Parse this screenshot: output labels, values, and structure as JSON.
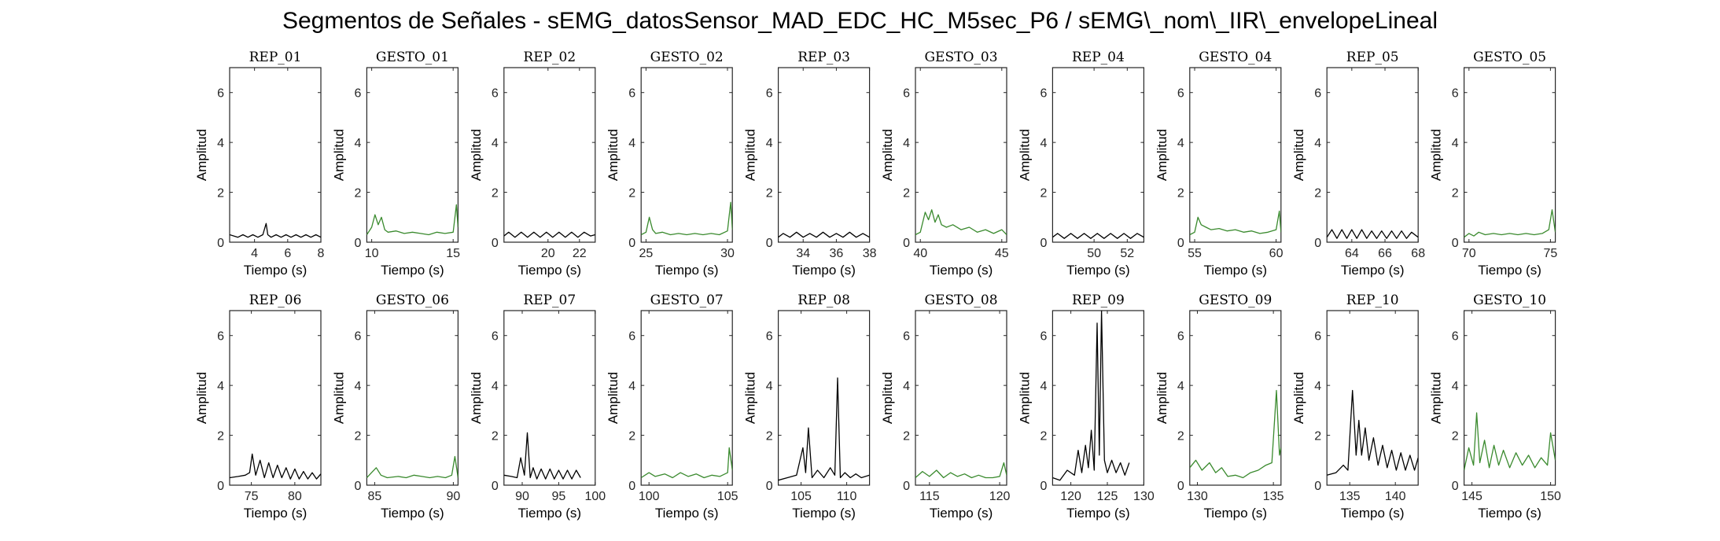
{
  "title": "Segmentos de Señales - sEMG_datosSensor_MAD_EDC_HC_M5sec_P6 / sEMG\\_nom\\_IIR\\_envelopeLineal",
  "colors": {
    "rep": "#000000",
    "gesto": "#3a8a2e",
    "axis": "#262626"
  },
  "chart_data": [
    {
      "type": "line",
      "title": "REP_01",
      "xlabel": "Tiempo (s)",
      "ylabel": "Amplitud",
      "xlim": [
        2.5,
        8
      ],
      "ylim": [
        0,
        7
      ],
      "xticks": [
        4,
        6,
        8
      ],
      "yticks": [
        0,
        2,
        4,
        6
      ],
      "color": "rep",
      "x": [
        2.5,
        3.0,
        3.3,
        3.6,
        3.9,
        4.2,
        4.5,
        4.7,
        4.8,
        5.0,
        5.3,
        5.6,
        5.9,
        6.2,
        6.5,
        6.8,
        7.1,
        7.4,
        7.7,
        8.0
      ],
      "y": [
        0.3,
        0.2,
        0.3,
        0.2,
        0.3,
        0.2,
        0.3,
        0.75,
        0.3,
        0.2,
        0.3,
        0.2,
        0.3,
        0.2,
        0.3,
        0.2,
        0.3,
        0.2,
        0.3,
        0.2
      ]
    },
    {
      "type": "line",
      "title": "GESTO_01",
      "xlabel": "Tiempo (s)",
      "ylabel": "Amplitud",
      "xlim": [
        9.7,
        15.3
      ],
      "ylim": [
        0,
        7
      ],
      "xticks": [
        10,
        15
      ],
      "yticks": [
        0,
        2,
        4,
        6
      ],
      "color": "gesto",
      "x": [
        9.7,
        10.0,
        10.2,
        10.4,
        10.6,
        10.8,
        11.0,
        11.5,
        12.0,
        12.5,
        13.0,
        13.5,
        14.0,
        14.5,
        15.0,
        15.2,
        15.3
      ],
      "y": [
        0.3,
        0.6,
        1.1,
        0.7,
        1.0,
        0.5,
        0.4,
        0.45,
        0.35,
        0.4,
        0.35,
        0.3,
        0.4,
        0.35,
        0.4,
        1.5,
        0.6
      ]
    },
    {
      "type": "line",
      "title": "REP_02",
      "xlabel": "Tiempo (s)",
      "ylabel": "Amplitud",
      "xlim": [
        17.2,
        23
      ],
      "ylim": [
        0,
        7
      ],
      "xticks": [
        20,
        22
      ],
      "yticks": [
        0,
        2,
        4,
        6
      ],
      "color": "rep",
      "x": [
        17.2,
        17.5,
        17.9,
        18.3,
        18.7,
        19.1,
        19.5,
        19.9,
        20.3,
        20.7,
        21.1,
        21.5,
        21.9,
        22.3,
        22.7,
        23.0
      ],
      "y": [
        0.25,
        0.4,
        0.2,
        0.4,
        0.2,
        0.4,
        0.2,
        0.4,
        0.2,
        0.4,
        0.2,
        0.4,
        0.2,
        0.4,
        0.25,
        0.3
      ]
    },
    {
      "type": "line",
      "title": "GESTO_02",
      "xlabel": "Tiempo (s)",
      "ylabel": "Amplitud",
      "xlim": [
        24.7,
        30.3
      ],
      "ylim": [
        0,
        7
      ],
      "xticks": [
        25,
        30
      ],
      "yticks": [
        0,
        2,
        4,
        6
      ],
      "color": "gesto",
      "x": [
        24.7,
        25.0,
        25.2,
        25.4,
        25.6,
        26.0,
        26.5,
        27.0,
        27.5,
        28.0,
        28.5,
        29.0,
        29.5,
        30.0,
        30.2,
        30.3
      ],
      "y": [
        0.3,
        0.4,
        1.0,
        0.5,
        0.35,
        0.4,
        0.3,
        0.35,
        0.3,
        0.35,
        0.3,
        0.35,
        0.3,
        0.45,
        1.6,
        0.5
      ]
    },
    {
      "type": "line",
      "title": "REP_03",
      "xlabel": "Tiempo (s)",
      "ylabel": "Amplitud",
      "xlim": [
        32.5,
        38
      ],
      "ylim": [
        0,
        7
      ],
      "xticks": [
        34,
        36,
        38
      ],
      "yticks": [
        0,
        2,
        4,
        6
      ],
      "color": "rep",
      "x": [
        32.5,
        32.8,
        33.2,
        33.6,
        34.0,
        34.4,
        34.8,
        35.2,
        35.6,
        36.0,
        36.4,
        36.8,
        37.2,
        37.6,
        38.0
      ],
      "y": [
        0.2,
        0.35,
        0.2,
        0.4,
        0.2,
        0.35,
        0.2,
        0.4,
        0.2,
        0.35,
        0.2,
        0.4,
        0.2,
        0.35,
        0.2
      ]
    },
    {
      "type": "line",
      "title": "GESTO_03",
      "xlabel": "Tiempo (s)",
      "ylabel": "Amplitud",
      "xlim": [
        39.7,
        45.3
      ],
      "ylim": [
        0,
        7
      ],
      "xticks": [
        40,
        45
      ],
      "yticks": [
        0,
        2,
        4,
        6
      ],
      "color": "gesto",
      "x": [
        39.7,
        40.0,
        40.3,
        40.5,
        40.7,
        40.9,
        41.1,
        41.3,
        41.6,
        42.0,
        42.5,
        43.0,
        43.5,
        44.0,
        44.5,
        45.0,
        45.3
      ],
      "y": [
        0.3,
        0.4,
        1.2,
        0.9,
        1.3,
        0.8,
        1.1,
        0.7,
        0.6,
        0.7,
        0.5,
        0.6,
        0.4,
        0.5,
        0.35,
        0.5,
        0.3
      ]
    },
    {
      "type": "line",
      "title": "REP_04",
      "xlabel": "Tiempo (s)",
      "ylabel": "Amplitud",
      "xlim": [
        47.5,
        53
      ],
      "ylim": [
        0,
        7
      ],
      "xticks": [
        50,
        52
      ],
      "yticks": [
        0,
        2,
        4,
        6
      ],
      "color": "rep",
      "x": [
        47.5,
        47.8,
        48.2,
        48.6,
        49.0,
        49.4,
        49.8,
        50.2,
        50.6,
        51.0,
        51.4,
        51.8,
        52.2,
        52.6,
        53.0
      ],
      "y": [
        0.2,
        0.35,
        0.15,
        0.35,
        0.15,
        0.35,
        0.15,
        0.35,
        0.15,
        0.35,
        0.15,
        0.35,
        0.15,
        0.35,
        0.2
      ]
    },
    {
      "type": "line",
      "title": "GESTO_04",
      "xlabel": "Tiempo (s)",
      "ylabel": "Amplitud",
      "xlim": [
        54.7,
        60.3
      ],
      "ylim": [
        0,
        7
      ],
      "xticks": [
        55,
        60
      ],
      "yticks": [
        0,
        2,
        4,
        6
      ],
      "color": "gesto",
      "x": [
        54.7,
        55.0,
        55.2,
        55.4,
        55.7,
        56.0,
        56.5,
        57.0,
        57.5,
        58.0,
        58.5,
        59.0,
        59.5,
        60.0,
        60.2,
        60.3
      ],
      "y": [
        0.3,
        0.4,
        1.0,
        0.7,
        0.6,
        0.5,
        0.55,
        0.45,
        0.5,
        0.4,
        0.45,
        0.35,
        0.4,
        0.5,
        1.25,
        0.4
      ]
    },
    {
      "type": "line",
      "title": "REP_05",
      "xlabel": "Tiempo (s)",
      "ylabel": "Amplitud",
      "xlim": [
        62.5,
        68
      ],
      "ylim": [
        0,
        7
      ],
      "xticks": [
        64,
        66,
        68
      ],
      "yticks": [
        0,
        2,
        4,
        6
      ],
      "color": "rep",
      "x": [
        62.5,
        62.8,
        63.1,
        63.4,
        63.7,
        64.0,
        64.3,
        64.6,
        64.9,
        65.2,
        65.5,
        65.8,
        66.1,
        66.4,
        66.7,
        67.0,
        67.3,
        67.6,
        68.0
      ],
      "y": [
        0.2,
        0.5,
        0.15,
        0.5,
        0.15,
        0.5,
        0.15,
        0.5,
        0.15,
        0.45,
        0.15,
        0.45,
        0.15,
        0.45,
        0.15,
        0.45,
        0.15,
        0.4,
        0.2
      ]
    },
    {
      "type": "line",
      "title": "GESTO_05",
      "xlabel": "Tiempo (s)",
      "ylabel": "Amplitud",
      "xlim": [
        69.7,
        75.3
      ],
      "ylim": [
        0,
        7
      ],
      "xticks": [
        70,
        75
      ],
      "yticks": [
        0,
        2,
        4,
        6
      ],
      "color": "gesto",
      "x": [
        69.7,
        70.0,
        70.3,
        70.6,
        71.0,
        71.5,
        72.0,
        72.5,
        73.0,
        73.5,
        74.0,
        74.5,
        74.9,
        75.1,
        75.3
      ],
      "y": [
        0.2,
        0.35,
        0.25,
        0.4,
        0.3,
        0.35,
        0.3,
        0.35,
        0.3,
        0.35,
        0.3,
        0.35,
        0.5,
        1.3,
        0.4
      ]
    },
    {
      "type": "line",
      "title": "REP_06",
      "xlabel": "Tiempo (s)",
      "ylabel": "Amplitud",
      "xlim": [
        72.5,
        83
      ],
      "ylim": [
        0,
        7
      ],
      "xticks": [
        75,
        80
      ],
      "yticks": [
        0,
        2,
        4,
        6
      ],
      "color": "rep",
      "x": [
        72.5,
        73.5,
        74.3,
        74.8,
        75.1,
        75.5,
        76.0,
        76.5,
        77.0,
        77.5,
        78.0,
        78.5,
        79.0,
        79.5,
        80.0,
        80.5,
        81.0,
        81.5,
        82.0,
        82.5,
        83.0
      ],
      "y": [
        0.3,
        0.35,
        0.4,
        0.5,
        1.25,
        0.4,
        1.0,
        0.3,
        0.9,
        0.3,
        0.8,
        0.3,
        0.7,
        0.25,
        0.65,
        0.25,
        0.55,
        0.25,
        0.5,
        0.25,
        0.45
      ]
    },
    {
      "type": "line",
      "title": "GESTO_06",
      "xlabel": "Tiempo (s)",
      "ylabel": "Amplitud",
      "xlim": [
        84.5,
        90.3
      ],
      "ylim": [
        0,
        7
      ],
      "xticks": [
        85,
        90
      ],
      "yticks": [
        0,
        2,
        4,
        6
      ],
      "color": "gesto",
      "x": [
        84.5,
        84.8,
        85.1,
        85.4,
        85.8,
        86.5,
        87.0,
        87.5,
        88.0,
        88.5,
        89.0,
        89.5,
        89.9,
        90.1,
        90.3
      ],
      "y": [
        0.3,
        0.5,
        0.7,
        0.4,
        0.3,
        0.35,
        0.3,
        0.4,
        0.35,
        0.3,
        0.35,
        0.3,
        0.4,
        1.15,
        0.3
      ]
    },
    {
      "type": "line",
      "title": "REP_07",
      "xlabel": "Tiempo (s)",
      "ylabel": "Amplitud",
      "xlim": [
        87.5,
        100
      ],
      "ylim": [
        0,
        7
      ],
      "xticks": [
        90,
        95,
        100
      ],
      "yticks": [
        0,
        2,
        4,
        6
      ],
      "color": "rep",
      "x": [
        87.5,
        88.5,
        89.3,
        89.8,
        90.3,
        90.7,
        91.1,
        91.5,
        92.0,
        92.6,
        93.2,
        93.8,
        94.4,
        95.0,
        95.6,
        96.2,
        96.8,
        97.4,
        98.0
      ],
      "y": [
        0.4,
        0.35,
        0.3,
        1.1,
        0.4,
        2.1,
        0.3,
        0.7,
        0.25,
        0.65,
        0.25,
        0.65,
        0.25,
        0.6,
        0.25,
        0.6,
        0.25,
        0.6,
        0.3
      ]
    },
    {
      "type": "line",
      "title": "GESTO_07",
      "xlabel": "Tiempo (s)",
      "ylabel": "Amplitud",
      "xlim": [
        99.5,
        105.3
      ],
      "ylim": [
        0,
        7
      ],
      "xticks": [
        100,
        105
      ],
      "yticks": [
        0,
        2,
        4,
        6
      ],
      "color": "gesto",
      "x": [
        99.5,
        100.0,
        100.4,
        101.0,
        101.5,
        102.0,
        102.5,
        103.0,
        103.5,
        104.0,
        104.5,
        105.0,
        105.1,
        105.3
      ],
      "y": [
        0.3,
        0.5,
        0.35,
        0.45,
        0.3,
        0.5,
        0.35,
        0.45,
        0.3,
        0.4,
        0.35,
        0.5,
        1.5,
        0.6
      ]
    },
    {
      "type": "line",
      "title": "REP_08",
      "xlabel": "Tiempo (s)",
      "ylabel": "Amplitud",
      "xlim": [
        102.5,
        112.5
      ],
      "ylim": [
        0,
        7
      ],
      "xticks": [
        105,
        110
      ],
      "yticks": [
        0,
        2,
        4,
        6
      ],
      "color": "rep",
      "x": [
        102.5,
        103.5,
        104.5,
        105.2,
        105.5,
        105.8,
        106.2,
        106.8,
        107.5,
        108.2,
        108.7,
        109.0,
        109.3,
        109.8,
        110.4,
        111.0,
        111.6,
        112.5
      ],
      "y": [
        0.2,
        0.3,
        0.4,
        1.5,
        0.5,
        2.3,
        0.3,
        0.6,
        0.3,
        0.7,
        0.4,
        4.3,
        0.3,
        0.5,
        0.3,
        0.45,
        0.3,
        0.4
      ]
    },
    {
      "type": "line",
      "title": "GESTO_08",
      "xlabel": "Tiempo (s)",
      "ylabel": "Amplitud",
      "xlim": [
        114,
        120.5
      ],
      "ylim": [
        0,
        7
      ],
      "xticks": [
        115,
        120
      ],
      "yticks": [
        0,
        2,
        4,
        6
      ],
      "color": "gesto",
      "x": [
        114.0,
        114.5,
        115.0,
        115.5,
        116.0,
        116.5,
        117.0,
        117.5,
        118.0,
        118.5,
        119.0,
        119.5,
        120.0,
        120.3,
        120.5
      ],
      "y": [
        0.3,
        0.55,
        0.35,
        0.6,
        0.3,
        0.5,
        0.35,
        0.45,
        0.3,
        0.4,
        0.3,
        0.3,
        0.35,
        0.9,
        0.4
      ]
    },
    {
      "type": "line",
      "title": "REP_09",
      "xlabel": "Tiempo (s)",
      "ylabel": "Amplitud",
      "xlim": [
        117.5,
        130
      ],
      "ylim": [
        0,
        7
      ],
      "xticks": [
        120,
        125,
        130
      ],
      "yticks": [
        0,
        2,
        4,
        6
      ],
      "color": "rep",
      "x": [
        117.5,
        118.5,
        119.5,
        120.5,
        121.0,
        121.5,
        122.0,
        122.4,
        122.8,
        123.2,
        123.6,
        123.9,
        124.2,
        124.6,
        125.0,
        125.6,
        126.2,
        126.8,
        127.4,
        128.0
      ],
      "y": [
        0.3,
        0.2,
        0.6,
        0.4,
        1.4,
        0.5,
        1.6,
        0.7,
        2.2,
        0.6,
        6.5,
        1.2,
        7.0,
        1.0,
        0.5,
        1.0,
        0.5,
        0.9,
        0.4,
        0.9
      ]
    },
    {
      "type": "line",
      "title": "GESTO_09",
      "xlabel": "Tiempo (s)",
      "ylabel": "Amplitud",
      "xlim": [
        129.5,
        135.5
      ],
      "ylim": [
        0,
        7
      ],
      "xticks": [
        130,
        135
      ],
      "yticks": [
        0,
        2,
        4,
        6
      ],
      "color": "gesto",
      "x": [
        129.5,
        129.9,
        130.3,
        130.8,
        131.2,
        131.6,
        132.0,
        132.5,
        133.0,
        133.5,
        134.0,
        134.5,
        134.9,
        135.2,
        135.4,
        135.5
      ],
      "y": [
        0.7,
        1.0,
        0.6,
        0.9,
        0.5,
        0.7,
        0.35,
        0.4,
        0.3,
        0.5,
        0.6,
        0.8,
        0.9,
        3.8,
        1.2,
        1.5
      ]
    },
    {
      "type": "line",
      "title": "REP_10",
      "xlabel": "Tiempo (s)",
      "ylabel": "Amplitud",
      "xlim": [
        132.5,
        142.5
      ],
      "ylim": [
        0,
        7
      ],
      "xticks": [
        135,
        140
      ],
      "yticks": [
        0,
        2,
        4,
        6
      ],
      "color": "rep",
      "x": [
        132.5,
        133.5,
        134.3,
        134.8,
        135.3,
        135.7,
        136.0,
        136.3,
        136.7,
        137.1,
        137.6,
        138.1,
        138.6,
        139.1,
        139.6,
        140.1,
        140.6,
        141.1,
        141.6,
        142.1,
        142.5
      ],
      "y": [
        0.4,
        0.5,
        0.8,
        0.6,
        3.8,
        1.2,
        2.6,
        1.2,
        2.3,
        1.0,
        1.9,
        0.8,
        1.6,
        0.7,
        1.4,
        0.6,
        1.3,
        0.6,
        1.2,
        0.6,
        1.1
      ]
    },
    {
      "type": "line",
      "title": "GESTO_10",
      "xlabel": "Tiempo (s)",
      "ylabel": "Amplitud",
      "xlim": [
        144.5,
        150.3
      ],
      "ylim": [
        0,
        7
      ],
      "xticks": [
        145,
        150
      ],
      "yticks": [
        0,
        2,
        4,
        6
      ],
      "color": "gesto",
      "x": [
        144.5,
        144.8,
        145.1,
        145.3,
        145.5,
        145.8,
        146.1,
        146.4,
        146.7,
        147.0,
        147.4,
        147.8,
        148.2,
        148.6,
        149.0,
        149.4,
        149.8,
        150.0,
        150.3
      ],
      "y": [
        0.6,
        1.5,
        0.8,
        2.9,
        0.9,
        1.8,
        0.7,
        1.6,
        0.8,
        1.4,
        0.7,
        1.3,
        0.8,
        1.2,
        0.7,
        1.1,
        0.8,
        2.1,
        1.0
      ]
    }
  ]
}
